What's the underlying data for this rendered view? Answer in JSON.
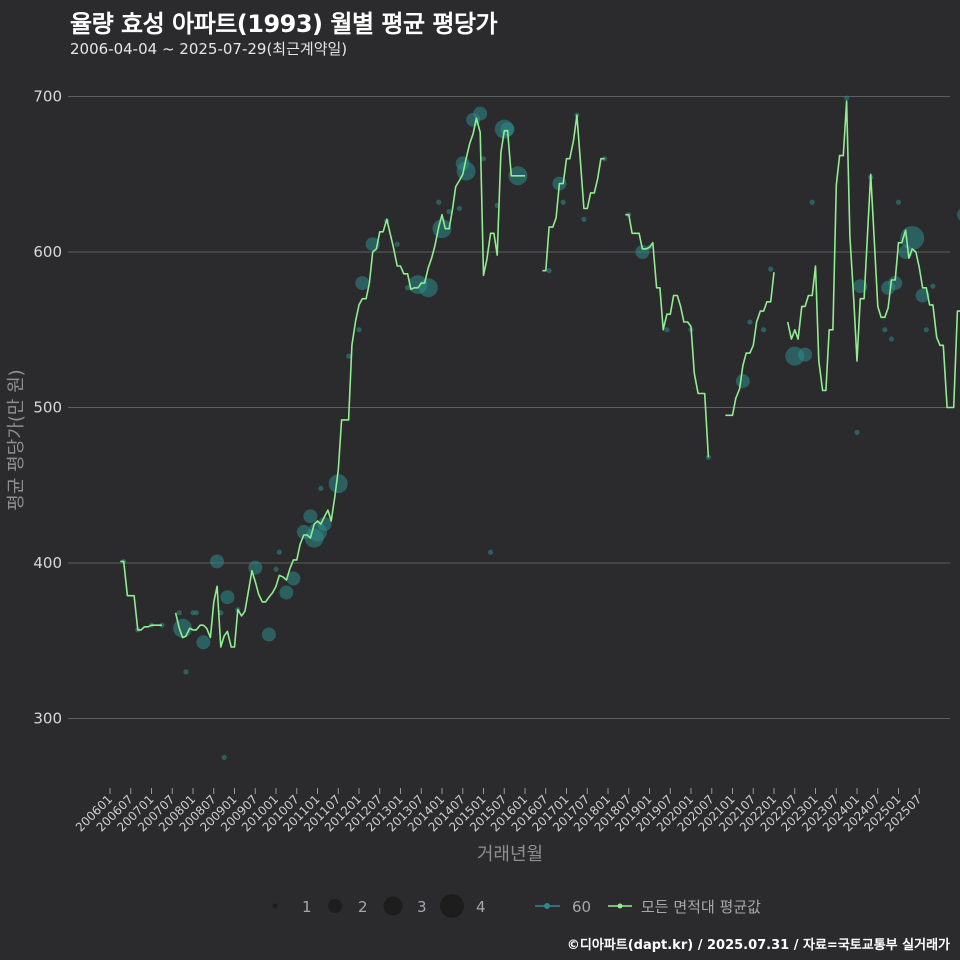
{
  "title": "율량 효성 아파트(1993) 월별 평균 평당가",
  "subtitle": "2006-04-04 ~ 2025-07-29(최근계약일)",
  "caption": "©디아파트(dapt.kr) / 2025.07.31 / 자료=국토교통부 실거래가",
  "colors": {
    "background": "#2b2a2c",
    "line": "#90ee90",
    "points": "#2e8b8b",
    "grid": "#5e5e5e"
  },
  "chart_data": {
    "type": "line",
    "xlabel": "거래년월",
    "ylabel": "평균 평당가(만 원)",
    "ylim": [
      250,
      720
    ],
    "yticks": [
      300,
      400,
      500,
      600,
      700
    ],
    "xlim": [
      2006.0,
      2025.9
    ],
    "xtick_labels": [
      "200601",
      "200607",
      "200701",
      "200707",
      "200801",
      "200807",
      "200901",
      "200907",
      "201001",
      "201007",
      "201101",
      "201107",
      "201201",
      "201207",
      "201301",
      "201307",
      "201401",
      "201407",
      "201501",
      "201507",
      "201601",
      "201607",
      "201701",
      "201707",
      "201801",
      "201807",
      "201901",
      "201907",
      "202001",
      "202007",
      "202101",
      "202107",
      "202201",
      "202207",
      "202301",
      "202307",
      "202401",
      "202407",
      "202501",
      "202507"
    ],
    "legend": {
      "size_label_values": [
        "1",
        "2",
        "3",
        "4"
      ],
      "series_label_60": "60",
      "series_label_all": "모든 면적대 평균값"
    },
    "line_series": [
      [
        [
          2006.25,
          401
        ],
        [
          2006.33,
          401
        ],
        [
          2006.42,
          379
        ],
        [
          2006.5,
          379
        ],
        [
          2006.58,
          379
        ],
        [
          2006.67,
          357
        ],
        [
          2006.75,
          357
        ],
        [
          2006.83,
          359
        ],
        [
          2006.92,
          359
        ],
        [
          2007.0,
          360
        ],
        [
          2007.08,
          360
        ],
        [
          2007.17,
          360
        ],
        [
          2007.25,
          360
        ]
      ],
      [
        [
          2007.58,
          368
        ],
        [
          2007.67,
          358
        ],
        [
          2007.75,
          352
        ],
        [
          2007.83,
          353
        ],
        [
          2007.92,
          358
        ],
        [
          2008.0,
          357
        ],
        [
          2008.08,
          357
        ],
        [
          2008.17,
          360
        ],
        [
          2008.25,
          360
        ],
        [
          2008.33,
          358
        ],
        [
          2008.42,
          352
        ],
        [
          2008.5,
          375
        ],
        [
          2008.58,
          385
        ],
        [
          2008.67,
          346
        ],
        [
          2008.75,
          353
        ],
        [
          2008.83,
          356
        ],
        [
          2008.92,
          346
        ],
        [
          2009.0,
          346
        ],
        [
          2009.08,
          370
        ],
        [
          2009.17,
          366
        ],
        [
          2009.25,
          369
        ],
        [
          2009.33,
          381
        ],
        [
          2009.42,
          395
        ],
        [
          2009.5,
          388
        ],
        [
          2009.58,
          380
        ],
        [
          2009.67,
          375
        ],
        [
          2009.75,
          375
        ],
        [
          2009.83,
          378
        ],
        [
          2009.92,
          381
        ],
        [
          2010.0,
          385
        ],
        [
          2010.08,
          392
        ],
        [
          2010.17,
          391
        ],
        [
          2010.25,
          389
        ],
        [
          2010.33,
          396
        ],
        [
          2010.42,
          402
        ],
        [
          2010.5,
          402
        ],
        [
          2010.58,
          412
        ],
        [
          2010.67,
          418
        ],
        [
          2010.75,
          418
        ],
        [
          2010.83,
          416
        ],
        [
          2010.92,
          425
        ],
        [
          2011.0,
          427
        ],
        [
          2011.08,
          425
        ],
        [
          2011.17,
          430
        ],
        [
          2011.25,
          434
        ],
        [
          2011.33,
          427
        ],
        [
          2011.42,
          443
        ],
        [
          2011.5,
          460
        ],
        [
          2011.58,
          492
        ],
        [
          2011.67,
          492
        ],
        [
          2011.75,
          492
        ],
        [
          2011.83,
          540
        ],
        [
          2011.92,
          556
        ],
        [
          2012.0,
          566
        ],
        [
          2012.08,
          570
        ],
        [
          2012.17,
          570
        ],
        [
          2012.25,
          580
        ],
        [
          2012.33,
          600
        ],
        [
          2012.42,
          602
        ],
        [
          2012.5,
          613
        ],
        [
          2012.58,
          613
        ],
        [
          2012.67,
          621
        ],
        [
          2012.75,
          612
        ],
        [
          2012.83,
          603
        ],
        [
          2012.92,
          591
        ],
        [
          2013.0,
          591
        ],
        [
          2013.08,
          586
        ],
        [
          2013.17,
          586
        ],
        [
          2013.25,
          576
        ],
        [
          2013.33,
          577
        ],
        [
          2013.42,
          577
        ],
        [
          2013.5,
          580
        ],
        [
          2013.58,
          580
        ],
        [
          2013.67,
          590
        ],
        [
          2013.75,
          596
        ],
        [
          2013.83,
          604
        ],
        [
          2013.92,
          616
        ],
        [
          2014.0,
          624
        ],
        [
          2014.08,
          615
        ],
        [
          2014.17,
          615
        ],
        [
          2014.25,
          627
        ],
        [
          2014.33,
          642
        ],
        [
          2014.42,
          646
        ],
        [
          2014.5,
          650
        ],
        [
          2014.58,
          660
        ],
        [
          2014.67,
          670
        ],
        [
          2014.75,
          676
        ],
        [
          2014.83,
          686
        ],
        [
          2014.92,
          677
        ],
        [
          2015.0,
          585
        ],
        [
          2015.08,
          595
        ],
        [
          2015.17,
          612
        ],
        [
          2015.25,
          612
        ],
        [
          2015.33,
          598
        ],
        [
          2015.42,
          664
        ],
        [
          2015.5,
          678
        ],
        [
          2015.58,
          678
        ],
        [
          2015.67,
          649
        ],
        [
          2015.75,
          649
        ],
        [
          2015.83,
          649
        ],
        [
          2015.92,
          649
        ],
        [
          2016.0,
          649
        ]
      ],
      [
        [
          2016.42,
          588
        ],
        [
          2016.5,
          588
        ],
        [
          2016.58,
          616
        ],
        [
          2016.67,
          616
        ],
        [
          2016.75,
          622
        ],
        [
          2016.83,
          644
        ],
        [
          2016.92,
          644
        ],
        [
          2017.0,
          660
        ],
        [
          2017.08,
          660
        ],
        [
          2017.17,
          672
        ],
        [
          2017.25,
          688
        ],
        [
          2017.33,
          660
        ],
        [
          2017.42,
          628
        ],
        [
          2017.5,
          628
        ],
        [
          2017.58,
          638
        ],
        [
          2017.67,
          638
        ],
        [
          2017.75,
          647
        ],
        [
          2017.83,
          660
        ],
        [
          2017.92,
          660
        ]
      ],
      [
        [
          2018.42,
          624
        ],
        [
          2018.5,
          624
        ],
        [
          2018.58,
          612
        ],
        [
          2018.67,
          612
        ],
        [
          2018.75,
          612
        ],
        [
          2018.83,
          602
        ],
        [
          2018.92,
          602
        ],
        [
          2019.0,
          603
        ],
        [
          2019.08,
          606
        ],
        [
          2019.17,
          577
        ],
        [
          2019.25,
          577
        ],
        [
          2019.33,
          550
        ],
        [
          2019.42,
          560
        ],
        [
          2019.5,
          560
        ],
        [
          2019.58,
          572
        ],
        [
          2019.67,
          572
        ],
        [
          2019.75,
          565
        ],
        [
          2019.83,
          555
        ],
        [
          2019.92,
          555
        ],
        [
          2020.0,
          552
        ],
        [
          2020.08,
          522
        ],
        [
          2020.17,
          509
        ],
        [
          2020.25,
          509
        ],
        [
          2020.33,
          509
        ],
        [
          2020.42,
          468
        ]
      ],
      [
        [
          2020.83,
          495
        ],
        [
          2020.92,
          495
        ],
        [
          2021.0,
          495
        ],
        [
          2021.08,
          506
        ],
        [
          2021.17,
          512
        ],
        [
          2021.25,
          527
        ],
        [
          2021.33,
          535
        ],
        [
          2021.42,
          535
        ],
        [
          2021.5,
          540
        ],
        [
          2021.58,
          555
        ],
        [
          2021.67,
          562
        ],
        [
          2021.75,
          562
        ],
        [
          2021.83,
          568
        ],
        [
          2021.92,
          568
        ],
        [
          2022.0,
          587
        ]
      ],
      [
        [
          2022.33,
          555
        ],
        [
          2022.42,
          544
        ],
        [
          2022.5,
          550
        ],
        [
          2022.58,
          544
        ],
        [
          2022.67,
          565
        ],
        [
          2022.75,
          565
        ],
        [
          2022.83,
          572
        ],
        [
          2022.92,
          572
        ],
        [
          2023.0,
          591
        ],
        [
          2023.08,
          530
        ],
        [
          2023.17,
          511
        ],
        [
          2023.25,
          511
        ],
        [
          2023.33,
          550
        ],
        [
          2023.42,
          550
        ],
        [
          2023.5,
          643
        ],
        [
          2023.58,
          662
        ],
        [
          2023.67,
          662
        ],
        [
          2023.75,
          697
        ],
        [
          2023.83,
          610
        ],
        [
          2023.92,
          570
        ],
        [
          2024.0,
          530
        ],
        [
          2024.08,
          570
        ],
        [
          2024.17,
          570
        ],
        [
          2024.25,
          610
        ],
        [
          2024.33,
          650
        ],
        [
          2024.42,
          606
        ],
        [
          2024.5,
          565
        ],
        [
          2024.58,
          558
        ],
        [
          2024.67,
          558
        ],
        [
          2024.75,
          564
        ],
        [
          2024.83,
          582
        ],
        [
          2024.92,
          582
        ],
        [
          2025.0,
          606
        ],
        [
          2025.08,
          606
        ],
        [
          2025.17,
          614
        ],
        [
          2025.25,
          596
        ],
        [
          2025.33,
          602
        ],
        [
          2025.42,
          600
        ],
        [
          2025.5,
          590
        ],
        [
          2025.58,
          577
        ],
        [
          2025.67,
          577
        ],
        [
          2025.75,
          566
        ],
        [
          2025.83,
          566
        ],
        [
          2025.92,
          545
        ],
        [
          2026.0,
          540
        ],
        [
          2026.08,
          540
        ],
        [
          2026.17,
          500
        ],
        [
          2026.25,
          500
        ],
        [
          2026.33,
          500
        ],
        [
          2026.42,
          562
        ],
        [
          2026.5,
          562
        ],
        [
          2026.58,
          624
        ]
      ]
    ],
    "points": [
      [
        2006.33,
        401,
        1
      ],
      [
        2006.67,
        357,
        1
      ],
      [
        2007.0,
        360,
        1
      ],
      [
        2007.25,
        360,
        1
      ],
      [
        2007.67,
        368,
        1
      ],
      [
        2007.75,
        358,
        3
      ],
      [
        2007.83,
        330,
        1
      ],
      [
        2008.0,
        368,
        1
      ],
      [
        2008.08,
        368,
        1
      ],
      [
        2008.25,
        349,
        2
      ],
      [
        2008.58,
        401,
        2
      ],
      [
        2008.67,
        368,
        1
      ],
      [
        2008.75,
        275,
        1
      ],
      [
        2008.83,
        378,
        2
      ],
      [
        2009.08,
        370,
        1
      ],
      [
        2009.5,
        397,
        2
      ],
      [
        2009.83,
        354,
        2
      ],
      [
        2010.0,
        396,
        1
      ],
      [
        2010.08,
        407,
        1
      ],
      [
        2010.25,
        381,
        2
      ],
      [
        2010.42,
        390,
        2
      ],
      [
        2010.67,
        420,
        2
      ],
      [
        2010.83,
        430,
        2
      ],
      [
        2010.92,
        416,
        3
      ],
      [
        2011.0,
        420,
        3
      ],
      [
        2011.08,
        448,
        1
      ],
      [
        2011.17,
        425,
        2
      ],
      [
        2011.5,
        451,
        3
      ],
      [
        2011.75,
        533,
        1
      ],
      [
        2012.0,
        550,
        1
      ],
      [
        2012.08,
        580,
        2
      ],
      [
        2012.33,
        605,
        2
      ],
      [
        2012.67,
        620,
        1
      ],
      [
        2012.92,
        605,
        1
      ],
      [
        2013.17,
        577,
        1
      ],
      [
        2013.42,
        579,
        3
      ],
      [
        2013.67,
        577,
        3
      ],
      [
        2013.92,
        632,
        1
      ],
      [
        2014.0,
        615,
        3
      ],
      [
        2014.17,
        626,
        1
      ],
      [
        2014.42,
        628,
        1
      ],
      [
        2014.5,
        657,
        2
      ],
      [
        2014.58,
        652,
        3
      ],
      [
        2014.75,
        685,
        2
      ],
      [
        2014.92,
        689,
        2
      ],
      [
        2015.0,
        660,
        1
      ],
      [
        2015.17,
        407,
        1
      ],
      [
        2015.33,
        630,
        1
      ],
      [
        2015.5,
        679,
        3
      ],
      [
        2015.58,
        679,
        2
      ],
      [
        2015.83,
        649,
        3
      ],
      [
        2016.58,
        588,
        1
      ],
      [
        2016.83,
        644,
        2
      ],
      [
        2016.92,
        632,
        1
      ],
      [
        2017.25,
        688,
        1
      ],
      [
        2017.42,
        621,
        1
      ],
      [
        2017.92,
        660,
        1
      ],
      [
        2018.5,
        624,
        1
      ],
      [
        2018.83,
        600,
        2
      ],
      [
        2019.0,
        603,
        1
      ],
      [
        2019.42,
        550,
        1
      ],
      [
        2020.0,
        550,
        1
      ],
      [
        2020.42,
        468,
        1
      ],
      [
        2021.25,
        517,
        2
      ],
      [
        2021.42,
        555,
        1
      ],
      [
        2021.75,
        550,
        1
      ],
      [
        2021.92,
        589,
        1
      ],
      [
        2022.5,
        533,
        3
      ],
      [
        2022.75,
        534,
        2
      ],
      [
        2022.92,
        632,
        1
      ],
      [
        2023.75,
        699,
        1
      ],
      [
        2024.0,
        484,
        1
      ],
      [
        2024.08,
        578,
        2
      ],
      [
        2024.33,
        648,
        1
      ],
      [
        2024.67,
        550,
        1
      ],
      [
        2024.75,
        577,
        2
      ],
      [
        2024.83,
        544,
        1
      ],
      [
        2024.92,
        580,
        2
      ],
      [
        2025.0,
        632,
        1
      ],
      [
        2025.17,
        600,
        2
      ],
      [
        2025.33,
        609,
        4
      ],
      [
        2025.58,
        572,
        2
      ],
      [
        2025.67,
        550,
        1
      ],
      [
        2025.83,
        578,
        1
      ],
      [
        2026.58,
        624,
        2
      ]
    ]
  }
}
